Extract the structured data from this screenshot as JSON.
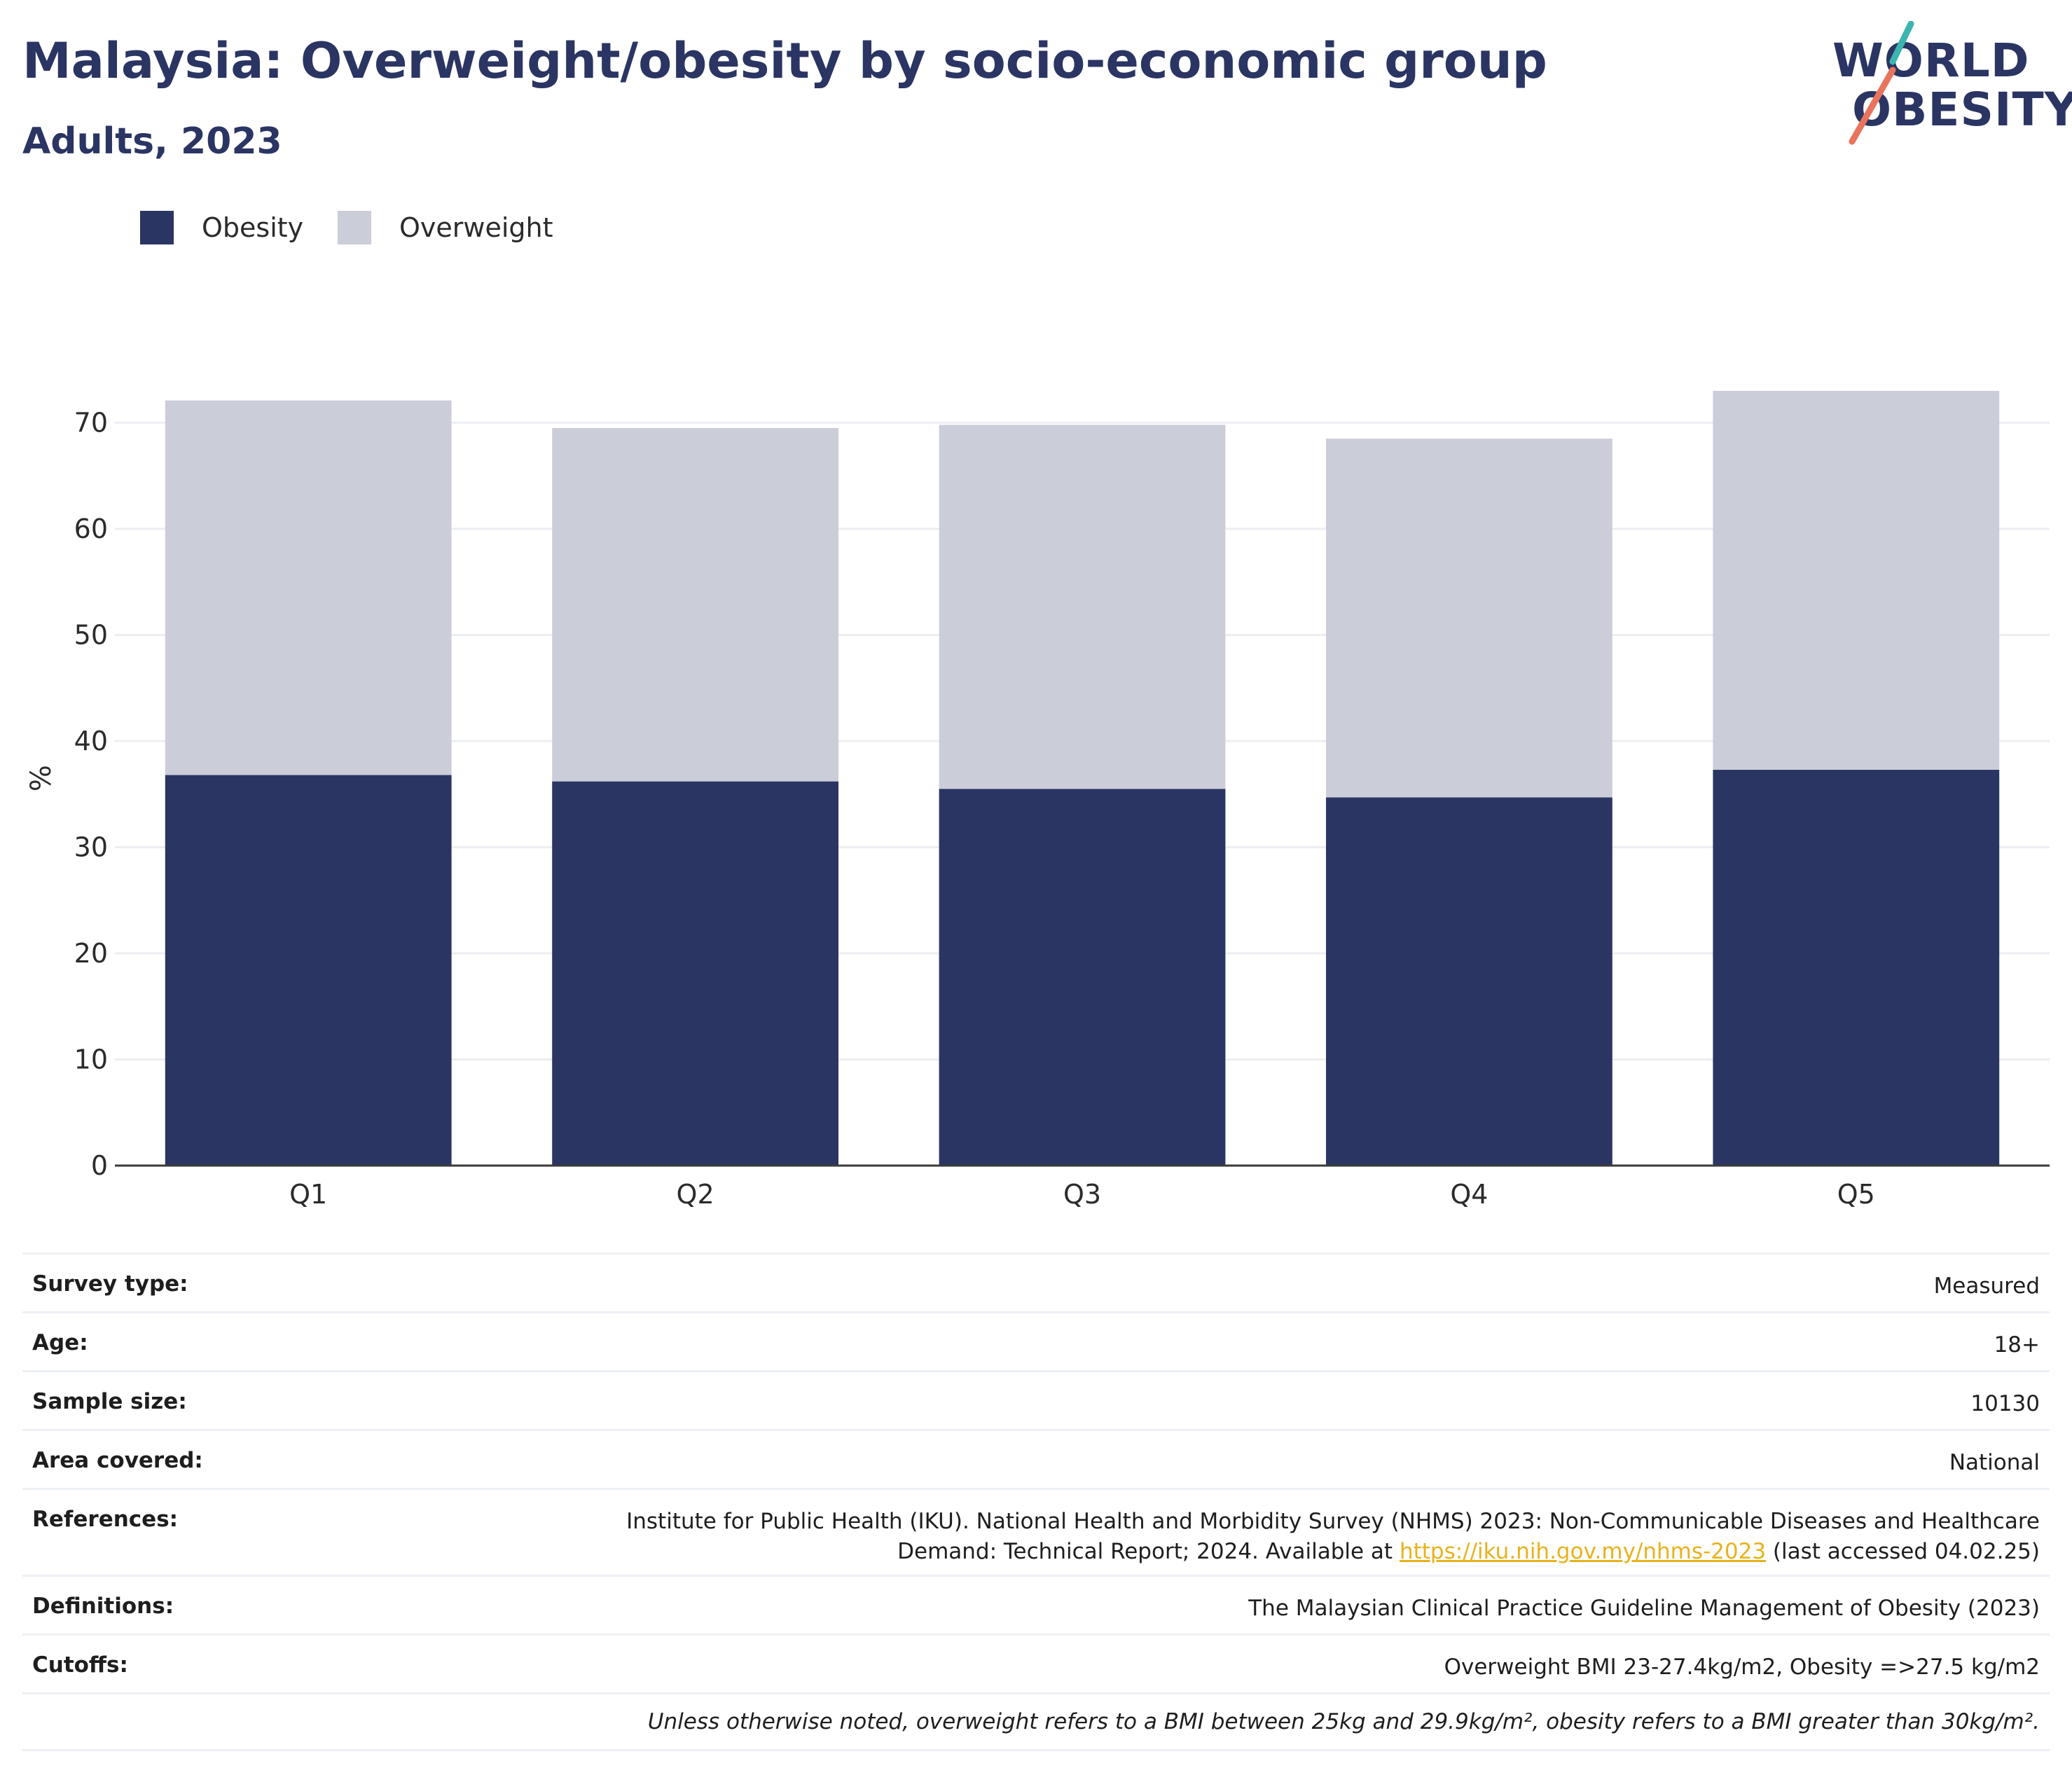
{
  "title": "Malaysia: Overweight/obesity by socio-economic group",
  "subtitle": "Adults, 2023",
  "logo": {
    "line1": "WORLD",
    "line2": "OBESITY"
  },
  "colors": {
    "obesity": "#2b3563",
    "overweight": "#cbcdd9",
    "title": "#2b3563",
    "link": "#e8b21c",
    "logo_teal": "#3cb4b0",
    "logo_coral": "#e9735c"
  },
  "chart_data": {
    "type": "bar",
    "stacked": true,
    "categories": [
      "Q1",
      "Q2",
      "Q3",
      "Q4",
      "Q5"
    ],
    "series": [
      {
        "name": "Obesity",
        "values": [
          36.8,
          36.2,
          35.5,
          34.7,
          37.3
        ]
      },
      {
        "name": "Overweight",
        "values": [
          35.3,
          33.3,
          34.3,
          33.8,
          35.7
        ]
      }
    ],
    "totals": [
      72.1,
      69.5,
      69.8,
      68.5,
      73.0
    ],
    "ylabel": "%",
    "ylim": [
      0,
      73
    ],
    "yticks": [
      0,
      10,
      20,
      30,
      40,
      50,
      60,
      70
    ],
    "grid": true,
    "legend_position": "top-left"
  },
  "meta": {
    "rows": [
      {
        "key": "Survey type:",
        "value": "Measured"
      },
      {
        "key": "Age:",
        "value": "18+"
      },
      {
        "key": "Sample size:",
        "value": "10130"
      },
      {
        "key": "Area covered:",
        "value": "National"
      },
      {
        "key": "References:",
        "value_line1": "Institute for Public Health (IKU). National Health and Morbidity Survey (NHMS) 2023: Non-Communicable Diseases and Healthcare",
        "value_line2_pre": "Demand: Technical Report; 2024. Available at ",
        "link": "https://iku.nih.gov.my/nhms-2023",
        "value_line2_post": " (last accessed 04.02.25)"
      },
      {
        "key": "Definitions:",
        "value": "The Malaysian Clinical Practice Guideline Management of Obesity (2023)"
      },
      {
        "key": "Cutoffs:",
        "value": "Overweight BMI 23-27.4kg/m2, Obesity =>27.5 kg/m2"
      }
    ],
    "note": "Unless otherwise noted, overweight refers to a BMI between 25kg and 29.9kg/m², obesity refers to a BMI greater than 30kg/m²."
  }
}
